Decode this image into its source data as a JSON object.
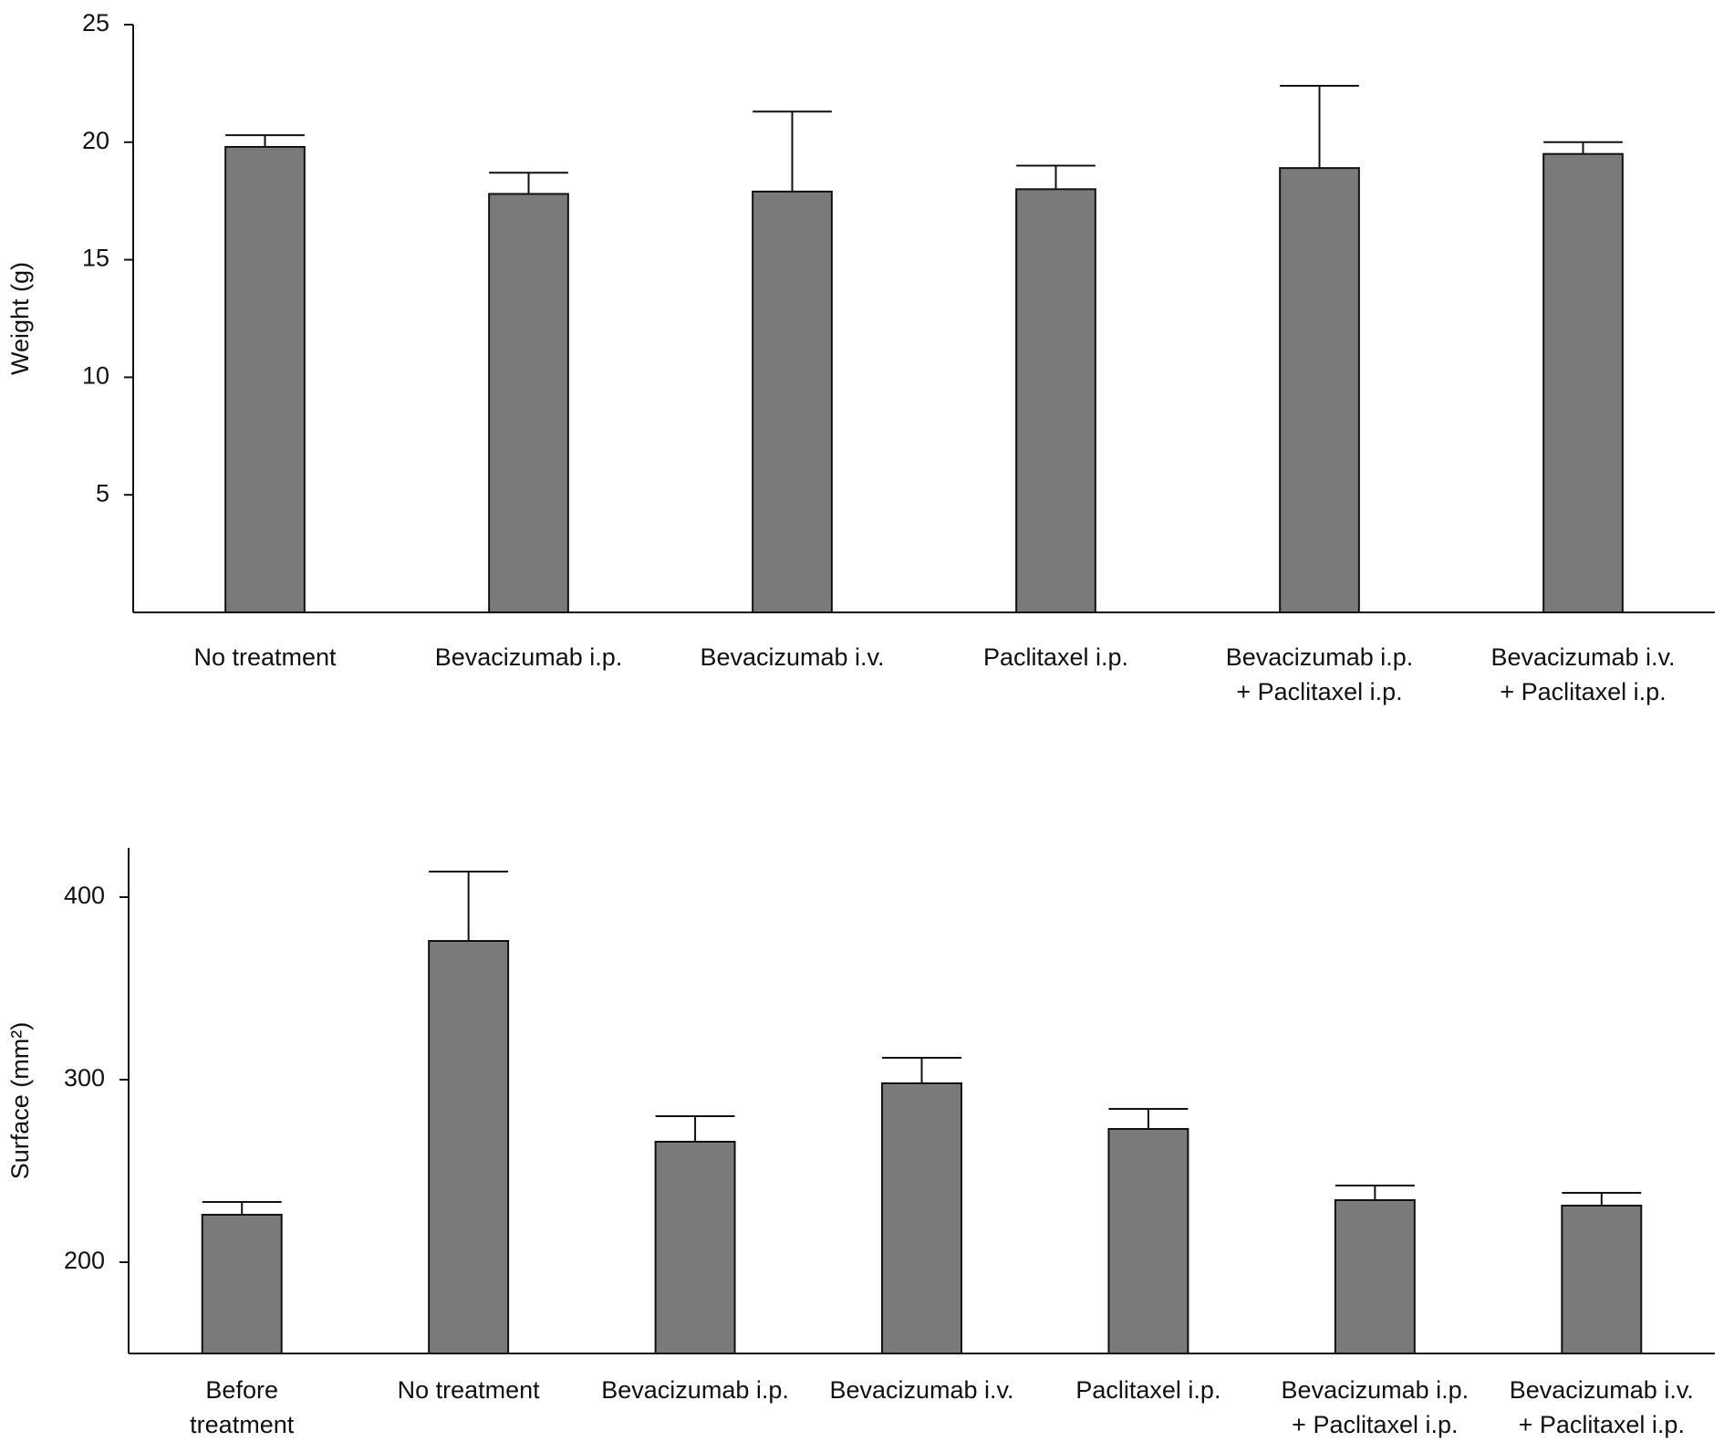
{
  "chart_data": [
    {
      "type": "bar",
      "ylabel": "Weight (g)",
      "categories": [
        "No treatment",
        "Bevacizumab i.p.",
        "Bevacizumab i.v.",
        "Paclitaxel i.p.",
        "Bevacizumab i.p.\n+ Paclitaxel i.p.",
        "Bevacizumab i.v.\n+ Paclitaxel i.p."
      ],
      "values": [
        19.8,
        17.8,
        17.9,
        18.0,
        18.9,
        19.5
      ],
      "errors": [
        0.5,
        0.9,
        3.4,
        1.0,
        3.5,
        0.5
      ],
      "color": "#7a7a7a",
      "ylim": [
        0,
        25
      ],
      "yticks": [
        5,
        10,
        15,
        20,
        25
      ],
      "grid": false
    },
    {
      "type": "bar",
      "ylabel": "Surface (mm²)",
      "categories": [
        "Before\ntreatment",
        "No treatment",
        "Bevacizumab i.p.",
        "Bevacizumab i.v.",
        "Paclitaxel i.p.",
        "Bevacizumab i.p.\n+ Paclitaxel i.p.",
        "Bevacizumab i.v.\n+ Paclitaxel i.p."
      ],
      "values": [
        226,
        376,
        266,
        298,
        273,
        234,
        231
      ],
      "errors": [
        7,
        38,
        14,
        14,
        11,
        8,
        7
      ],
      "color": "#7a7a7a",
      "ylim": [
        150,
        427
      ],
      "yticks": [
        200,
        300,
        400
      ],
      "grid": false
    }
  ]
}
